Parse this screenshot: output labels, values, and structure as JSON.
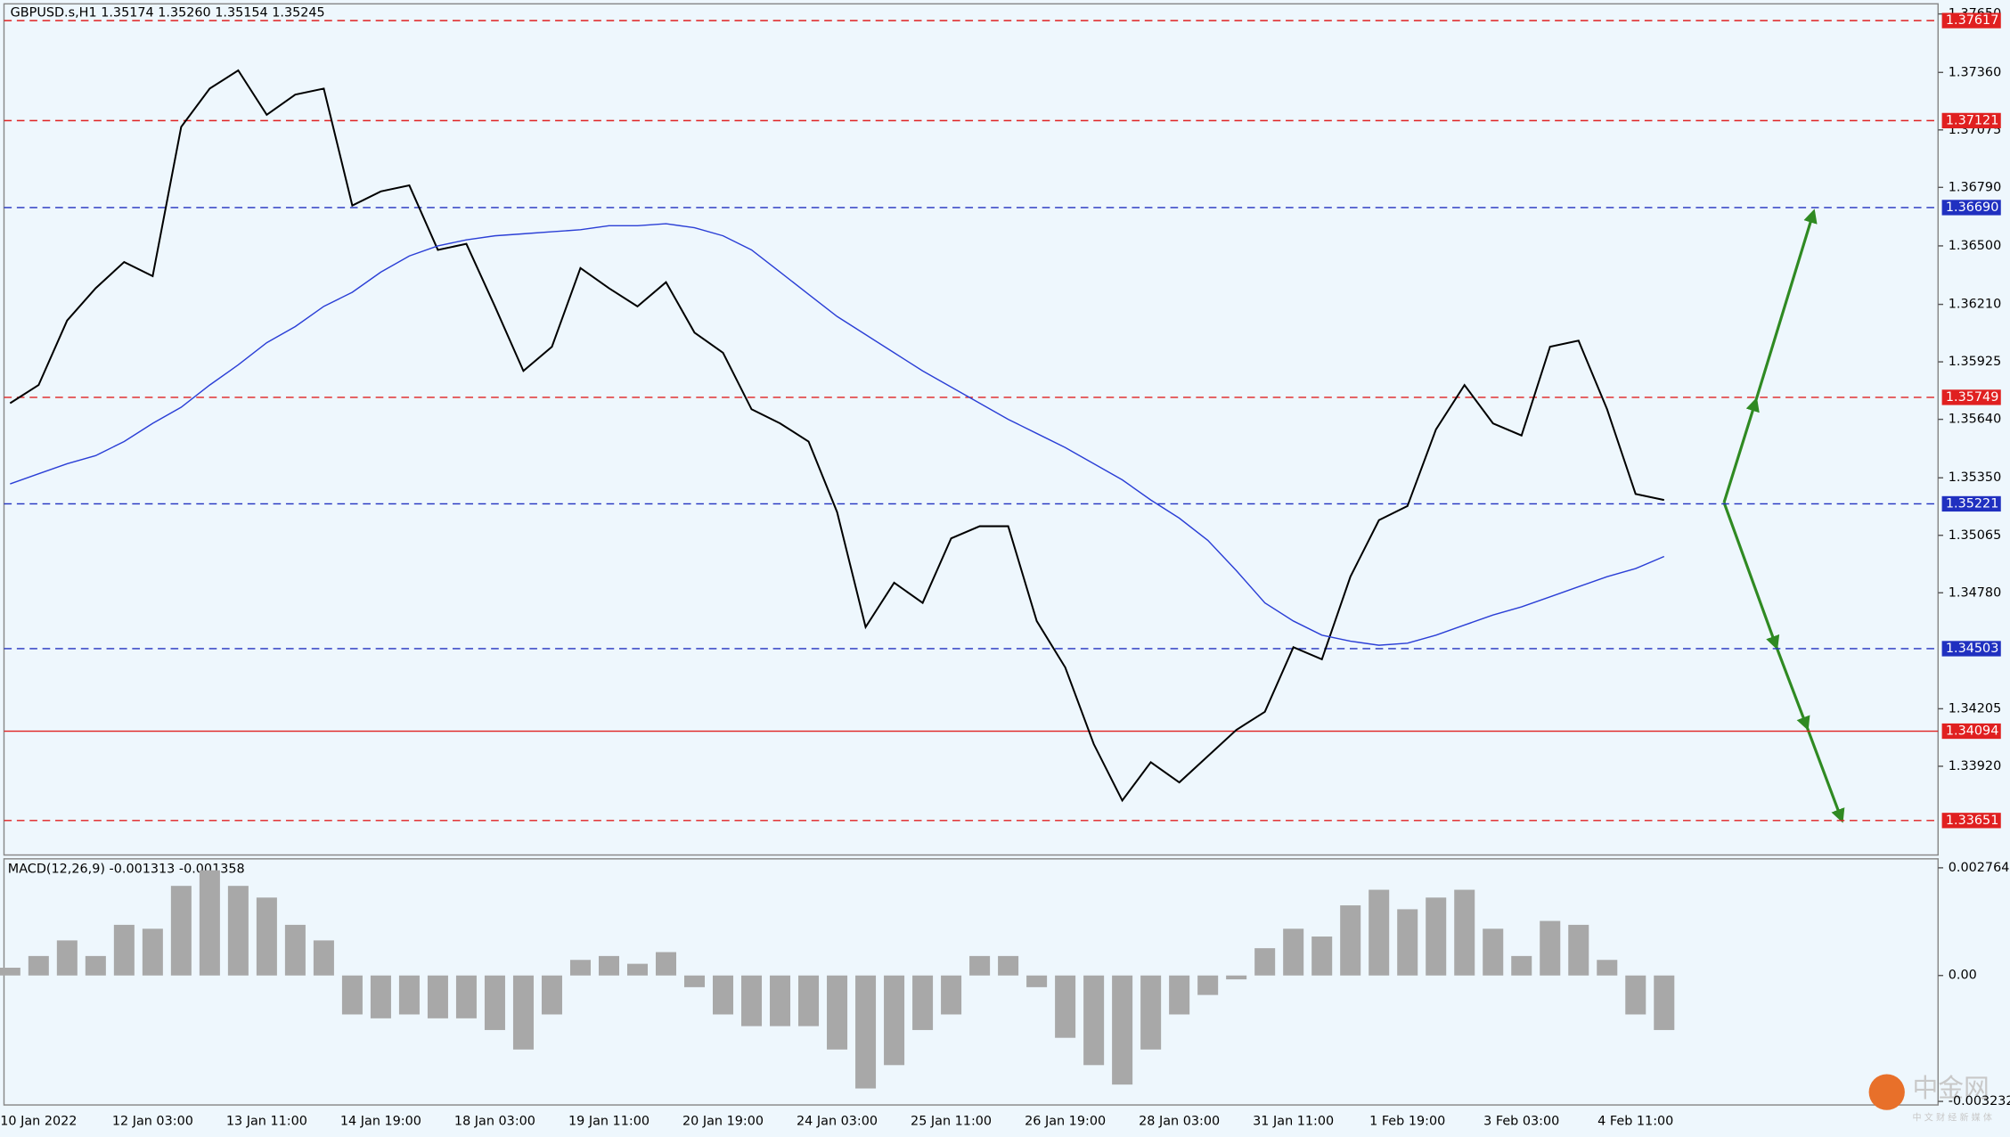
{
  "chart_data": [
    {
      "type": "line",
      "title": "GBPUSD.s,H1  1.35174 1.35260 1.35154 1.35245",
      "ylim": [
        1.3348,
        1.377
      ],
      "yticks": [
        {
          "value": 1.3765,
          "label": "1.37650"
        },
        {
          "value": 1.3736,
          "label": "1.37360"
        },
        1.37075,
        {
          "value": 1.3679,
          "label": "1.36790"
        },
        {
          "value": 1.365,
          "label": "1.36500"
        },
        {
          "value": 1.3621,
          "label": "1.36210"
        },
        1.35925,
        {
          "value": 1.3564,
          "label": "1.35640"
        },
        {
          "value": 1.3535,
          "label": "1.35350"
        },
        1.35065,
        {
          "value": 1.3478,
          "label": "1.34780"
        },
        1.34205,
        {
          "value": 1.3392,
          "label": "1.33920"
        }
      ],
      "levels": [
        {
          "value": 1.37617,
          "color": "#e02020",
          "dashed": true
        },
        {
          "value": 1.37121,
          "color": "#e02020",
          "dashed": true
        },
        {
          "value": 1.3669,
          "label": "1.36690",
          "color": "#2030c0",
          "dashed": true
        },
        {
          "value": 1.35749,
          "color": "#e02020",
          "dashed": true
        },
        {
          "value": 1.35221,
          "color": "#2030c0",
          "dashed": true
        },
        {
          "value": 1.34503,
          "color": "#2030c0",
          "dashed": true
        },
        {
          "value": 1.34094,
          "color": "#e02020",
          "dashed": false
        },
        {
          "value": 1.33651,
          "color": "#e02020",
          "dashed": true
        }
      ],
      "series": [
        {
          "color": "#000000",
          "values": [
            1.3572,
            1.3581,
            1.3613,
            1.3629,
            1.3642,
            1.3635,
            1.3709,
            1.3728,
            1.3737,
            1.3715,
            1.3725,
            1.3728,
            1.367,
            1.3677,
            1.368,
            1.3648,
            1.3651,
            1.362,
            1.3588,
            1.36,
            1.3639,
            1.3629,
            1.362,
            1.3632,
            1.3607,
            1.3597,
            1.3569,
            1.3562,
            1.3553,
            1.3518,
            1.3461,
            1.3483,
            1.3473,
            1.3505,
            1.3511,
            1.3511,
            1.3464,
            1.3441,
            1.3403,
            1.3375,
            1.3394,
            1.3384,
            1.3397,
            1.341,
            1.3419,
            1.3451,
            1.3445,
            1.3486,
            1.3514,
            1.3521,
            1.3559,
            1.3581,
            1.3562,
            1.3556,
            1.36,
            1.3603,
            1.3569,
            1.3527,
            1.3524
          ]
        },
        {
          "color": "#2b3fd6",
          "values": [
            1.3532,
            1.3537,
            1.3542,
            1.3546,
            1.3553,
            1.3562,
            1.357,
            1.3581,
            1.3591,
            1.3602,
            1.361,
            1.362,
            1.3627,
            1.3637,
            1.3645,
            1.365,
            1.3653,
            1.3655,
            1.3656,
            1.3657,
            1.3658,
            1.366,
            1.366,
            1.3661,
            1.3659,
            1.3655,
            1.3648,
            1.3637,
            1.3626,
            1.3615,
            1.3606,
            1.3597,
            1.3588,
            1.358,
            1.3572,
            1.3564,
            1.3557,
            1.355,
            1.3542,
            1.3534,
            1.3524,
            1.3515,
            1.3504,
            1.3489,
            1.3473,
            1.3464,
            1.3457,
            1.3454,
            1.3452,
            1.3453,
            1.3457,
            1.3462,
            1.3467,
            1.3471,
            1.3476,
            1.3481,
            1.3486,
            1.349,
            1.3496
          ]
        }
      ]
    },
    {
      "type": "bar",
      "title": "MACD(12,26,9) -0.001313 -0.001358",
      "color": "#a8a8a8",
      "ylim": [
        -0.003323,
        0.002994
      ],
      "yticks": [
        0.002764,
        {
          "value": 0,
          "label": "0.00"
        },
        -0.003232
      ],
      "x": [
        null,
        "10 Jan 2022",
        null,
        null,
        null,
        "12 Jan 03:00",
        null,
        null,
        null,
        "13 Jan 11:00",
        null,
        null,
        null,
        "14 Jan 19:00",
        null,
        null,
        null,
        "18 Jan 03:00",
        null,
        null,
        null,
        "19 Jan 11:00",
        null,
        null,
        null,
        "20 Jan 19:00",
        null,
        null,
        null,
        "24 Jan 03:00",
        null,
        null,
        null,
        "25 Jan 11:00",
        null,
        null,
        null,
        "26 Jan 19:00",
        null,
        null,
        null,
        "28 Jan 03:00",
        null,
        null,
        null,
        "31 Jan 11:00",
        null,
        null,
        null,
        "1 Feb 19:00",
        null,
        null,
        null,
        "3 Feb 03:00",
        null,
        null,
        null,
        "4 Feb 11:00",
        null
      ],
      "values": [
        0.0002,
        0.0005,
        0.0009,
        0.0005,
        0.0013,
        0.0012,
        0.0023,
        0.0027,
        0.0023,
        0.002,
        0.0013,
        0.0009,
        -0.001,
        -0.0011,
        -0.001,
        -0.0011,
        -0.0011,
        -0.0014,
        -0.0019,
        -0.001,
        0.0004,
        0.0005,
        0.0003,
        0.0006,
        -0.0003,
        -0.001,
        -0.0013,
        -0.0013,
        -0.0013,
        -0.0019,
        -0.0029,
        -0.0023,
        -0.0014,
        -0.001,
        0.0005,
        0.0005,
        -0.0003,
        -0.0016,
        -0.0023,
        -0.0028,
        -0.0019,
        -0.001,
        -0.0005,
        -0.0001,
        0.0007,
        0.0012,
        0.001,
        0.0018,
        0.0022,
        0.0017,
        0.002,
        0.0022,
        0.0012,
        0.0005,
        0.0014,
        0.0013,
        0.0004,
        -0.001,
        -0.0014
      ]
    }
  ],
  "watermark": {
    "title": "中金网",
    "subtitle": "中 文 财 经 新 媒 体"
  }
}
